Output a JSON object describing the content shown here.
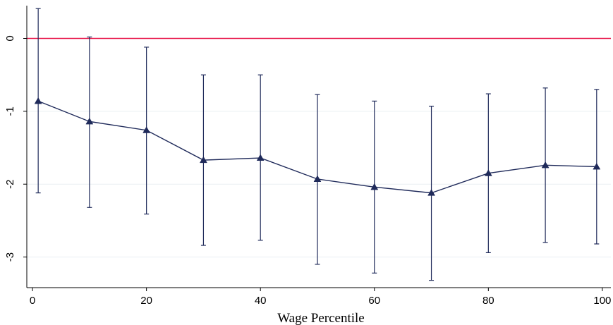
{
  "chart_data": {
    "type": "line",
    "title": "",
    "xlabel": "Wage Percentile",
    "ylabel": "",
    "xlim": [
      -1,
      101.5
    ],
    "ylim": [
      -3.42,
      0.45
    ],
    "xticks": [
      0,
      20,
      40,
      60,
      80,
      100
    ],
    "xtick_labels": [
      "0",
      "20",
      "40",
      "60",
      "80",
      "100"
    ],
    "yticks": [
      0,
      -1,
      -2,
      -3
    ],
    "ytick_labels": [
      "0",
      "-1",
      "-2",
      "-3"
    ],
    "reference_line": {
      "y": 0,
      "color": "#e8174a"
    },
    "grid": true,
    "legend": "none",
    "series": [
      {
        "color": "#1f2a5a",
        "marker": "triangle",
        "x": [
          1,
          10,
          20,
          30,
          40,
          50,
          60,
          70,
          80,
          90,
          99
        ],
        "y": [
          -0.86,
          -1.14,
          -1.26,
          -1.67,
          -1.64,
          -1.93,
          -2.04,
          -2.12,
          -1.85,
          -1.74,
          -1.76
        ],
        "ci_lower": [
          -2.12,
          -2.32,
          -2.41,
          -2.84,
          -2.77,
          -3.1,
          -3.22,
          -3.32,
          -2.94,
          -2.8,
          -2.82
        ],
        "ci_upper": [
          0.41,
          0.02,
          -0.12,
          -0.5,
          -0.5,
          -0.77,
          -0.86,
          -0.93,
          -0.76,
          -0.68,
          -0.7
        ]
      }
    ]
  }
}
